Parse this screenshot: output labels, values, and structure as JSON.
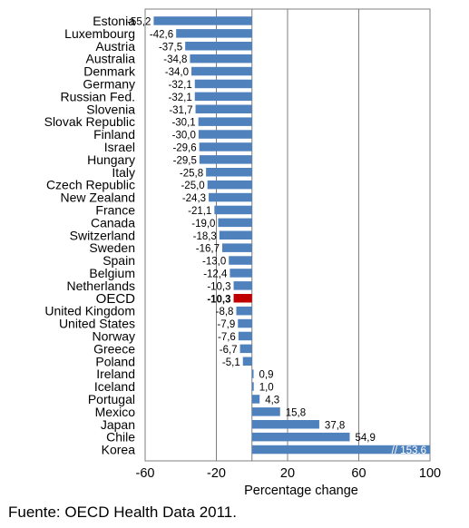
{
  "chart_data": {
    "type": "bar",
    "orientation": "horizontal",
    "categories": [
      "Estonia",
      "Luxembourg",
      "Austria",
      "Australia",
      "Denmark",
      "Germany",
      "Russian Fed.",
      "Slovenia",
      "Slovak Republic",
      "Finland",
      "Israel",
      "Hungary",
      "Italy",
      "Czech Republic",
      "New Zealand",
      "France",
      "Canada",
      "Switzerland",
      "Sweden",
      "Spain",
      "Belgium",
      "Netherlands",
      "OECD",
      "United Kingdom",
      "United States",
      "Norway",
      "Greece",
      "Poland",
      "Ireland",
      "Iceland",
      "Portugal",
      "Mexico",
      "Japan",
      "Chile",
      "Korea"
    ],
    "values": [
      -55.2,
      -42.6,
      -37.5,
      -34.8,
      -34.0,
      -32.1,
      -32.1,
      -31.7,
      -30.1,
      -30.0,
      -29.6,
      -29.5,
      -25.8,
      -25.0,
      -24.3,
      -21.1,
      -19.0,
      -18.3,
      -16.7,
      -13.0,
      -12.4,
      -10.3,
      -10.3,
      -8.8,
      -7.9,
      -7.6,
      -6.7,
      -5.1,
      0.9,
      1.0,
      4.3,
      15.8,
      37.8,
      54.9,
      153.6
    ],
    "value_labels": [
      "-55,2",
      "-42,6",
      "-37,5",
      "-34,8",
      "-34,0",
      "-32,1",
      "-32,1",
      "-31,7",
      "-30,1",
      "-30,0",
      "-29,6",
      "-29,5",
      "-25,8",
      "-25,0",
      "-24,3",
      "-21,1",
      "-19,0",
      "-18,3",
      "-16,7",
      "-13,0",
      "-12,4",
      "-10,3",
      "-10,3",
      "-8,8",
      "-7,9",
      "-7,6",
      "-6,7",
      "-5,1",
      "0,9",
      "1,0",
      "4,3",
      "15,8",
      "37,8",
      "54,9",
      "// 153,6"
    ],
    "highlight_category": "OECD",
    "colors": {
      "bar": "#4F81BD",
      "highlight": "#C00000",
      "grid": "#7F7F7F",
      "frame": "#7F7F7F"
    },
    "xlim": [
      -60,
      100
    ],
    "xticks": [
      -60,
      -20,
      20,
      60,
      100
    ],
    "xtick_labels": [
      "-60",
      "-20",
      "20",
      "60",
      "100"
    ],
    "xlabel": "Percentage change",
    "grid": "vertical",
    "clipped_bar_note": "Korea bar is truncated at the axis maximum (value 153,6)"
  },
  "source_text": "Fuente: OECD Health Data 2011."
}
